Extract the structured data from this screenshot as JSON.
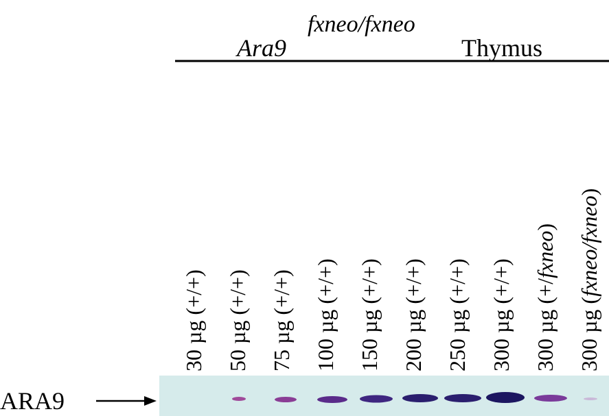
{
  "header": {
    "gene": "Ara9",
    "allele": "fxneo/fxneo",
    "tissue": "Thymus"
  },
  "lanes": [
    {
      "amount": "30 µg",
      "genotype": [
        {
          "text": "(+/+)"
        }
      ]
    },
    {
      "amount": "50 µg",
      "genotype": [
        {
          "text": "(+/+)"
        }
      ]
    },
    {
      "amount": "75 µg",
      "genotype": [
        {
          "text": "(+/+)"
        }
      ]
    },
    {
      "amount": "100 µg",
      "genotype": [
        {
          "text": "(+/+)"
        }
      ]
    },
    {
      "amount": "150 µg",
      "genotype": [
        {
          "text": "(+/+)"
        }
      ]
    },
    {
      "amount": "200 µg",
      "genotype": [
        {
          "text": "(+/+)"
        }
      ]
    },
    {
      "amount": "250 µg",
      "genotype": [
        {
          "text": "(+/+)"
        }
      ]
    },
    {
      "amount": "300 µg",
      "genotype": [
        {
          "text": "(+/+)"
        }
      ]
    },
    {
      "amount": "300 µg",
      "genotype": [
        {
          "text": "(+/"
        },
        {
          "text": "fxneo",
          "italic": true
        },
        {
          "text": ")"
        }
      ]
    },
    {
      "amount": "300 µg",
      "genotype": [
        {
          "text": "("
        },
        {
          "text": "fxneo/fxneo",
          "italic": true
        },
        {
          "text": ")"
        }
      ]
    }
  ],
  "band_label": "ARA9"
}
